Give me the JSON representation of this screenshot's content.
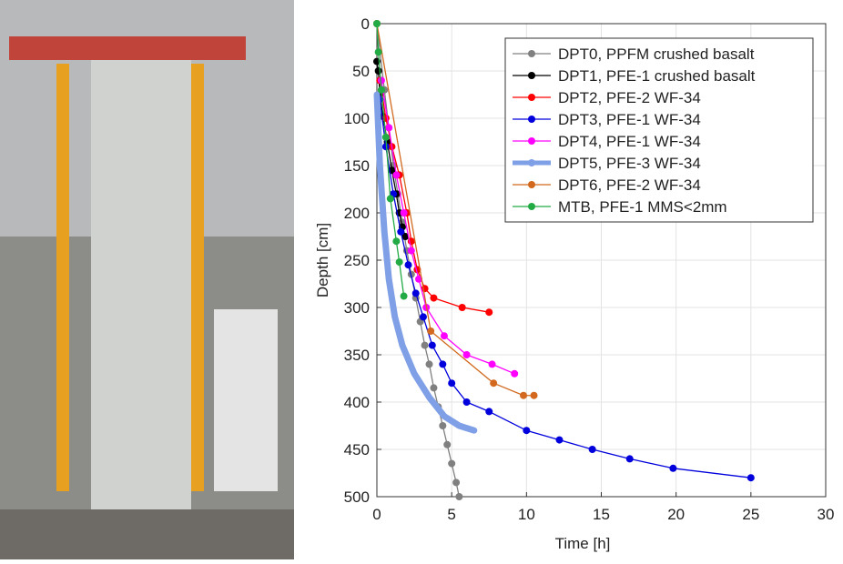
{
  "chart_data": {
    "type": "line",
    "xlabel": "Time [h]",
    "ylabel": "Depth [cm]",
    "xlim": [
      0,
      30
    ],
    "xticks": [
      0,
      5,
      10,
      15,
      20,
      25,
      30
    ],
    "ylim": [
      0,
      500
    ],
    "yticks": [
      0,
      50,
      100,
      150,
      200,
      250,
      300,
      350,
      400,
      450,
      500
    ],
    "y_inverted": true,
    "grid": true,
    "legend": "upper right",
    "series": [
      {
        "name": "DPT0, PPFM crushed basalt",
        "color": "#808080",
        "marker": true,
        "x": [
          0,
          0.5,
          0.8,
          1.1,
          1.4,
          1.7,
          2.0,
          2.3,
          2.6,
          2.9,
          3.2,
          3.5,
          3.8,
          4.1,
          4.4,
          4.7,
          5.0,
          5.3,
          5.5
        ],
        "values": [
          0,
          70,
          110,
          150,
          180,
          210,
          240,
          265,
          290,
          315,
          340,
          360,
          385,
          405,
          425,
          445,
          465,
          485,
          500
        ]
      },
      {
        "name": "DPT1, PFE-1 crushed basalt",
        "color": "#000000",
        "marker": true,
        "x": [
          0,
          0.1,
          0.2,
          0.4,
          0.7,
          1.0,
          1.3,
          1.5,
          1.7,
          1.9
        ],
        "values": [
          40,
          50,
          75,
          98,
          125,
          155,
          180,
          200,
          215,
          225
        ]
      },
      {
        "name": "DPT2, PFE-2 WF-34",
        "color": "#ff0000",
        "marker": true,
        "x": [
          0.2,
          0.6,
          1.0,
          1.5,
          2.0,
          2.3,
          2.7,
          3.2,
          3.8,
          5.7,
          7.5
        ],
        "values": [
          60,
          100,
          130,
          160,
          200,
          230,
          260,
          280,
          290,
          300,
          305
        ]
      },
      {
        "name": "DPT3, PFE-1 WF-34",
        "color": "#0000dd",
        "marker": true,
        "x": [
          0.2,
          0.6,
          1.1,
          1.6,
          2.1,
          2.6,
          3.1,
          3.7,
          4.4,
          5.0,
          6.0,
          7.5,
          10,
          12.2,
          14.4,
          16.9,
          19.8,
          25
        ],
        "values": [
          80,
          130,
          180,
          220,
          255,
          285,
          310,
          340,
          360,
          380,
          400,
          410,
          430,
          440,
          450,
          460,
          470,
          480
        ]
      },
      {
        "name": "DPT4, PFE-1 WF-34",
        "color": "#ff00ff",
        "marker": true,
        "x": [
          0.3,
          0.8,
          1.3,
          1.8,
          2.3,
          2.8,
          3.3,
          4.5,
          6.0,
          7.7,
          9.2
        ],
        "values": [
          60,
          110,
          160,
          200,
          240,
          270,
          300,
          330,
          350,
          360,
          370
        ]
      },
      {
        "name": "DPT5, PFE-3 WF-34",
        "color": "#7f9fe6",
        "marker": false,
        "x": [
          0,
          0.2,
          0.5,
          0.8,
          1.2,
          1.7,
          2.5,
          3.5,
          4.5,
          5.5,
          6.5
        ],
        "values": [
          75,
          150,
          220,
          270,
          310,
          340,
          370,
          395,
          415,
          425,
          430
        ]
      },
      {
        "name": "DPT6, PFE-2 WF-34",
        "color": "#d2691e",
        "marker": true,
        "x": [
          0,
          3.6,
          7.8,
          9.8,
          10.5
        ],
        "values": [
          0,
          325,
          380,
          393,
          393
        ]
      },
      {
        "name": "MTB,  PFE-1 MMS<2mm",
        "color": "#22aa44",
        "marker": true,
        "x": [
          0,
          0.1,
          0.3,
          0.6,
          0.9,
          1.3,
          1.5,
          1.8
        ],
        "values": [
          0,
          30,
          70,
          120,
          185,
          230,
          252,
          288
        ]
      }
    ]
  }
}
